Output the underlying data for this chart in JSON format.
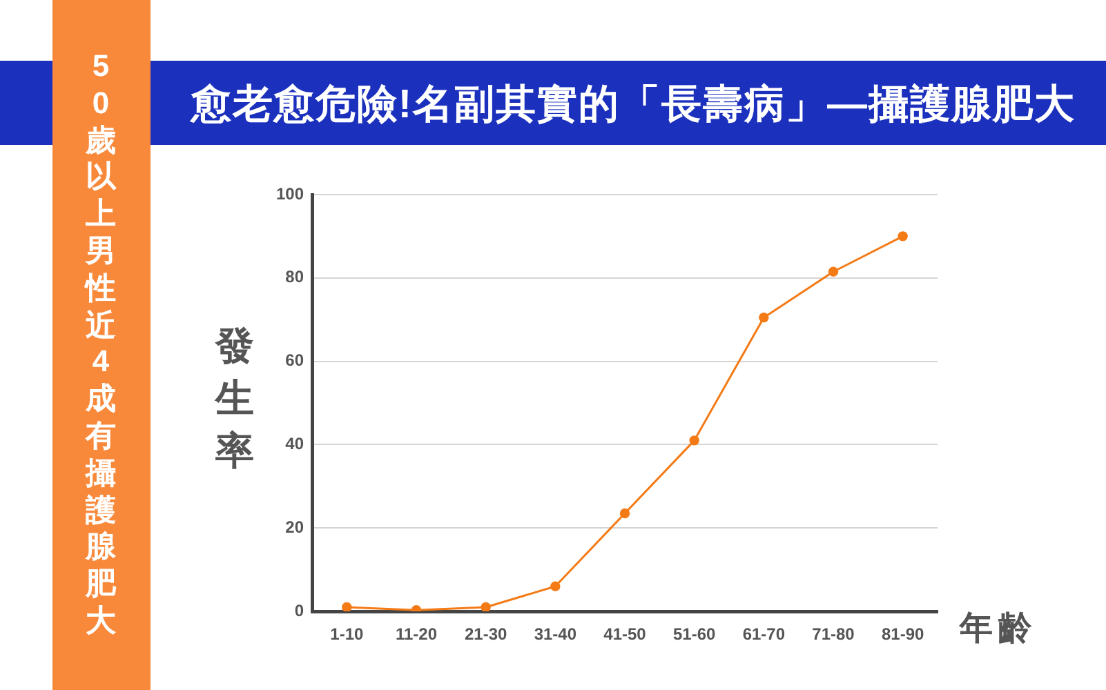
{
  "chart_data": {
    "type": "line",
    "title": "愈老愈危險!名副其實的「長壽病」—攝護腺肥大",
    "subtitle": "50歲以上男性近4成有攝護腺肥大",
    "xlabel": "年齡",
    "ylabel": "發生率",
    "categories": [
      "1-10",
      "11-20",
      "21-30",
      "31-40",
      "41-50",
      "51-60",
      "61-70",
      "71-80",
      "81-90"
    ],
    "values": [
      1,
      0.3,
      1,
      6,
      23.5,
      41,
      70.5,
      81.5,
      90
    ],
    "color": "#f47a16",
    "ylim": [
      0,
      100
    ],
    "yticks": [
      0,
      20,
      40,
      60,
      80,
      100
    ],
    "grid": "y",
    "marker": "circle",
    "line_style": "solid"
  }
}
